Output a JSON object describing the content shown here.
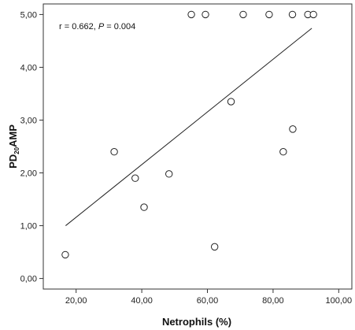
{
  "chart_data": {
    "type": "scatter",
    "title": "",
    "xlabel": "Netrophils (%)",
    "ylabel": {
      "base": "PD",
      "sub": "20",
      "suffix": "AMP"
    },
    "annotation": {
      "r_part": "r = 0.662, ",
      "p_letter": "P",
      "p_part": " = 0.004"
    },
    "xlim": [
      10,
      104
    ],
    "ylim": [
      -0.2,
      5.2
    ],
    "xticks": [
      20,
      40,
      60,
      80,
      100
    ],
    "xtick_labels": [
      "20,00",
      "40,00",
      "60,00",
      "80,00",
      "100,00"
    ],
    "yticks": [
      0,
      1,
      2,
      3,
      4,
      5
    ],
    "ytick_labels": [
      "0,00",
      "1,00",
      "2,00",
      "3,00",
      "4,00",
      "5,00"
    ],
    "grid": false,
    "points": [
      {
        "x": 16.7,
        "y": 0.45
      },
      {
        "x": 31.6,
        "y": 2.4
      },
      {
        "x": 38.0,
        "y": 1.9
      },
      {
        "x": 40.7,
        "y": 1.35
      },
      {
        "x": 48.3,
        "y": 1.98
      },
      {
        "x": 55.1,
        "y": 5.0
      },
      {
        "x": 59.4,
        "y": 5.0
      },
      {
        "x": 62.2,
        "y": 0.6
      },
      {
        "x": 67.2,
        "y": 3.35
      },
      {
        "x": 70.9,
        "y": 5.0
      },
      {
        "x": 78.8,
        "y": 5.0
      },
      {
        "x": 83.1,
        "y": 2.4
      },
      {
        "x": 85.9,
        "y": 5.0
      },
      {
        "x": 86.0,
        "y": 2.83
      },
      {
        "x": 90.6,
        "y": 5.0
      },
      {
        "x": 92.3,
        "y": 5.0
      }
    ],
    "fit_line": {
      "x1": 16.8,
      "y1": 1.0,
      "x2": 91.8,
      "y2": 4.74
    }
  }
}
